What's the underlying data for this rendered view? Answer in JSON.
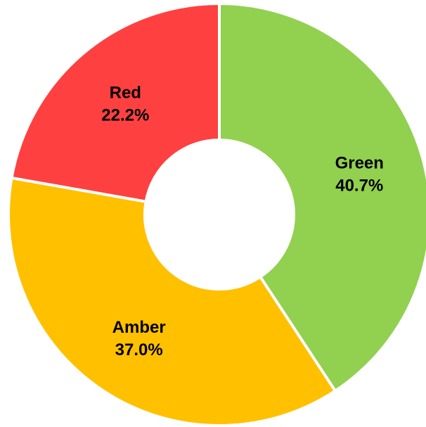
{
  "chart_data": {
    "type": "pie",
    "variant": "donut",
    "title": "",
    "legend": "none",
    "start_angle_deg": 0,
    "direction": "clockwise",
    "slices": [
      {
        "label": "Green",
        "value": 40.7,
        "value_label": "40.7%",
        "color": "#92D050"
      },
      {
        "label": "Amber",
        "value": 37.0,
        "value_label": "37.0%",
        "color": "#FFC000"
      },
      {
        "label": "Red",
        "value": 22.2,
        "value_label": "22.2%",
        "color": "#FF4040"
      }
    ]
  }
}
